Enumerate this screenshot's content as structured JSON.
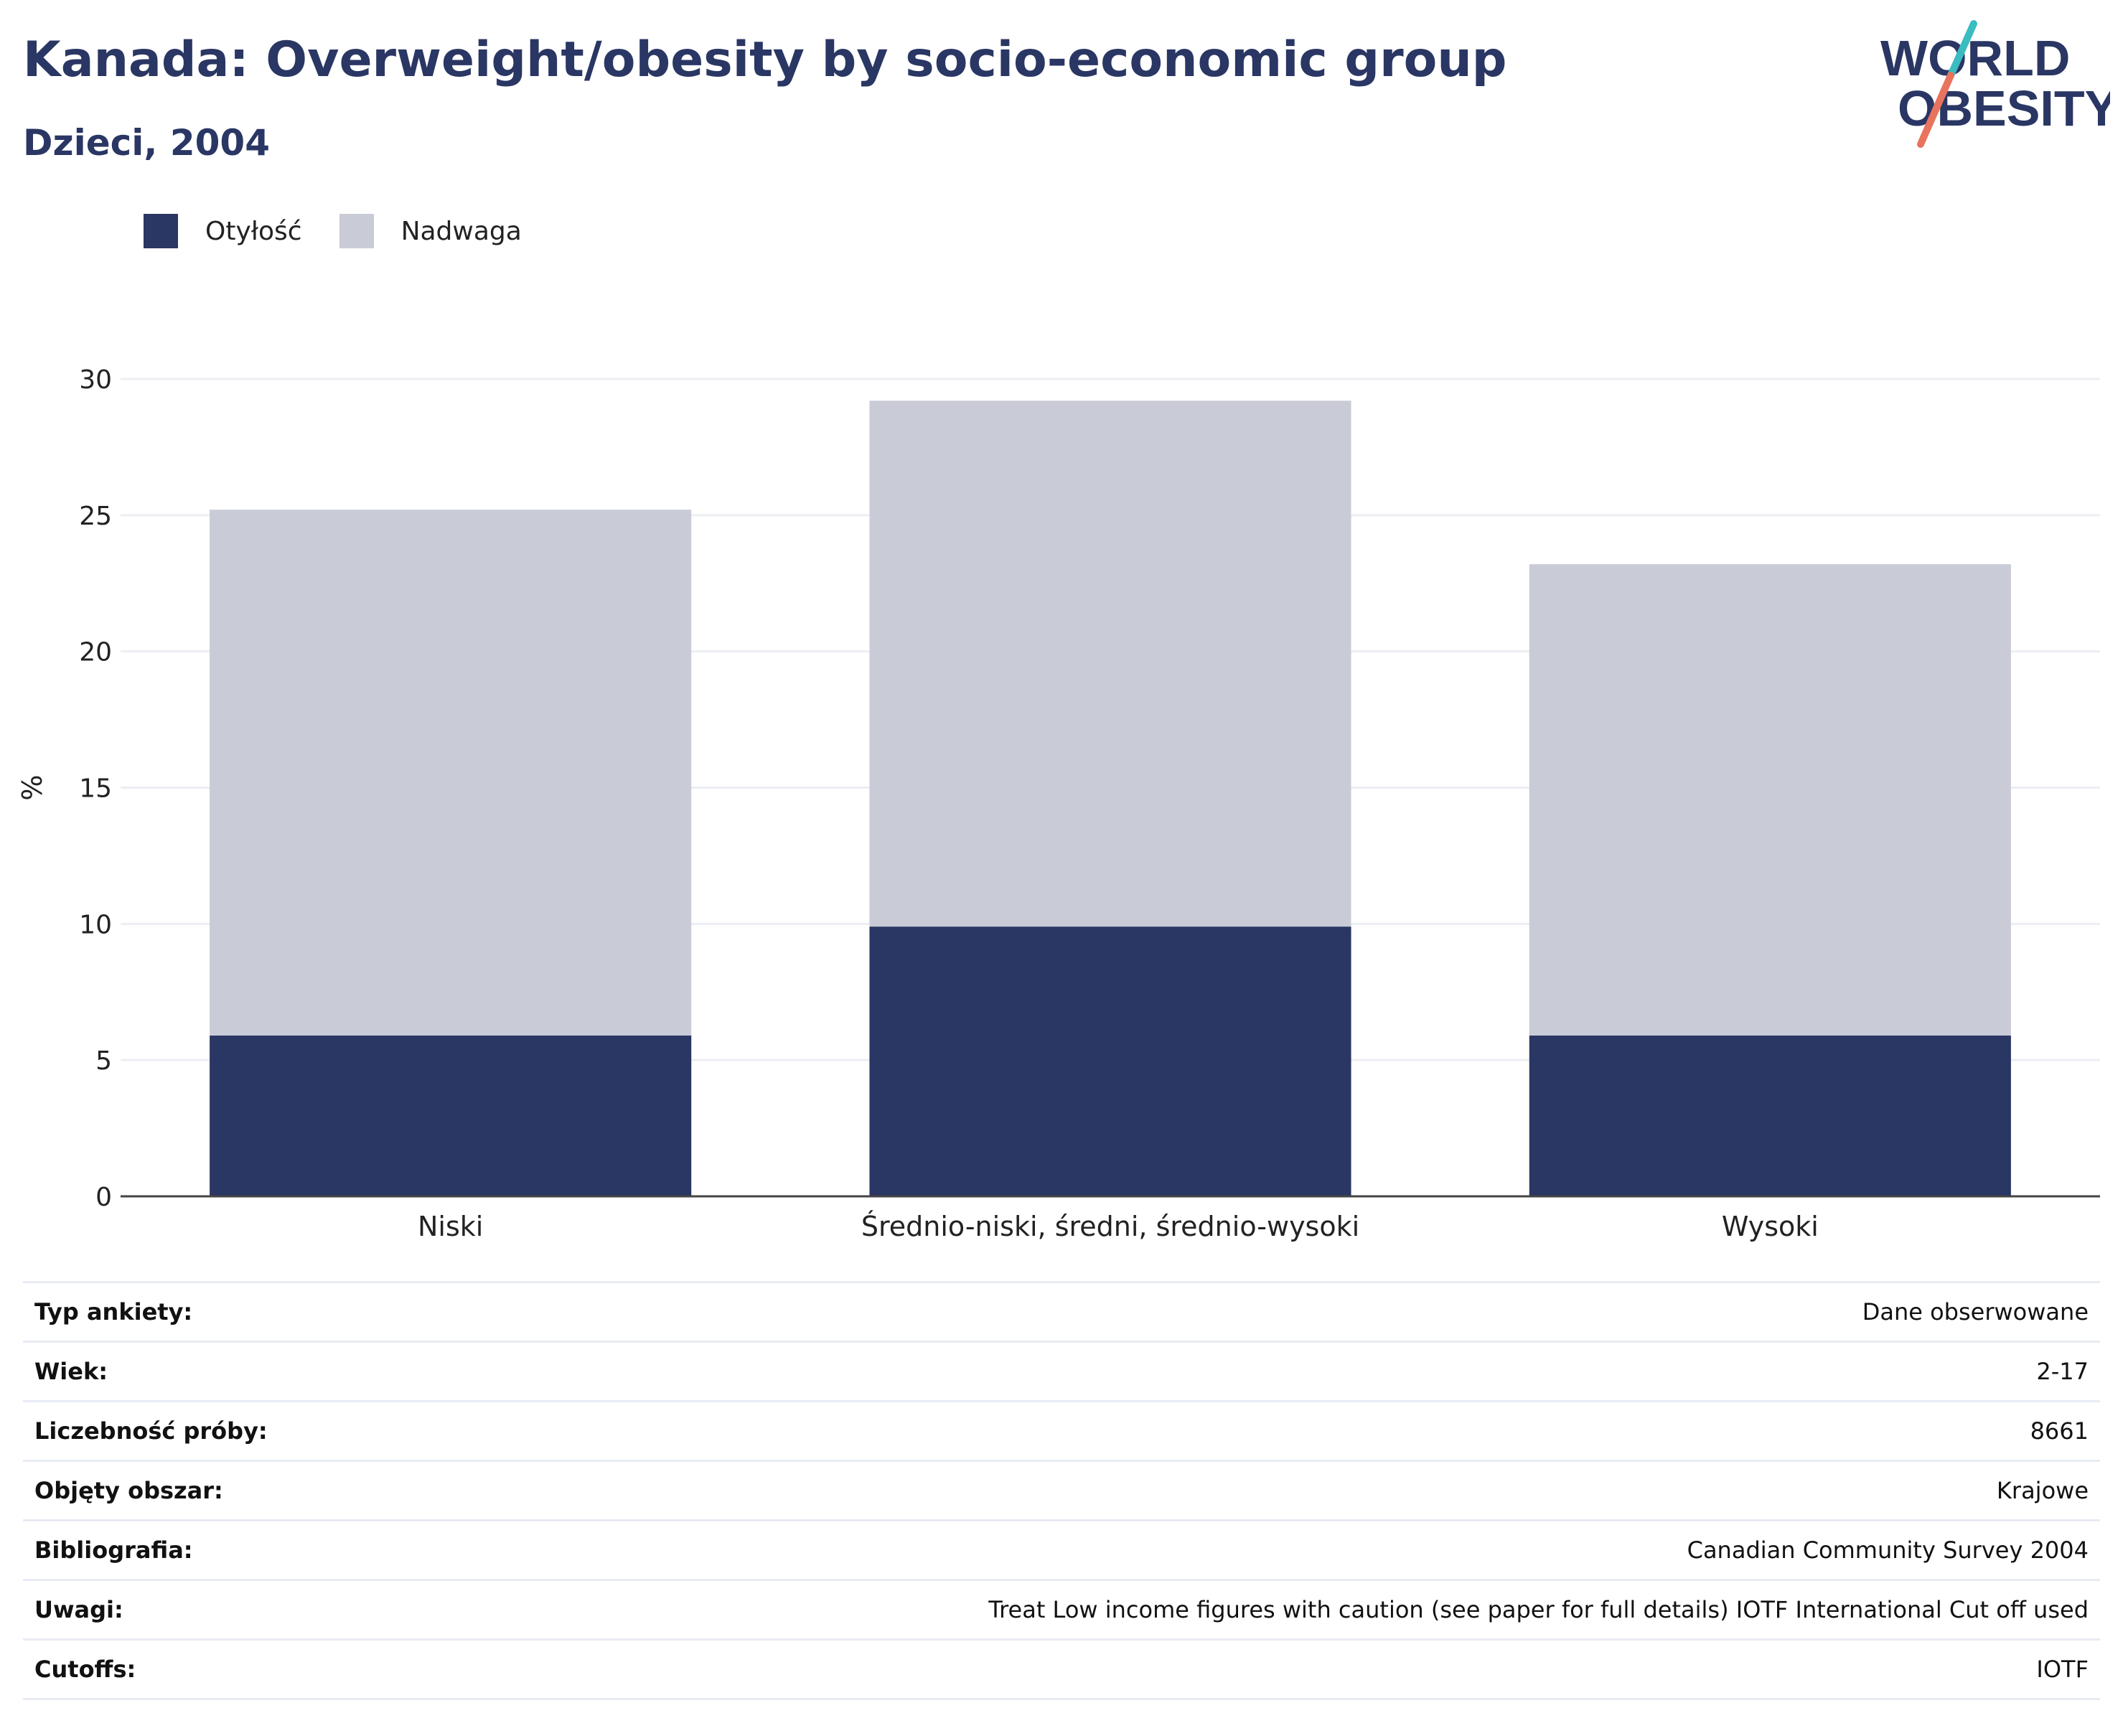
{
  "header": {
    "title": "Kanada: Overweight/obesity by socio-economic group",
    "subtitle": "Dzieci, 2004"
  },
  "logo": {
    "line1": "WORLD",
    "line2": "OBESITY",
    "colors": {
      "text": "#2a3663",
      "slash_teal": "#3bbcc1",
      "slash_coral": "#e8735e"
    }
  },
  "colors": {
    "obesity": "#2a3663",
    "overweight": "#c9cbd7",
    "grid": "#eceef3",
    "axis": "#444444"
  },
  "legend": [
    {
      "label": "Otyłość",
      "color": "#2a3663"
    },
    {
      "label": "Nadwaga",
      "color": "#c9cbd7"
    }
  ],
  "chart_data": {
    "type": "bar",
    "stacked": true,
    "categories": [
      "Niski",
      "Średnio-niski, średni, średnio-wysoki",
      "Wysoki"
    ],
    "series": [
      {
        "name": "Otyłość",
        "values": [
          5.9,
          9.9,
          5.9
        ]
      },
      {
        "name": "Nadwaga",
        "values": [
          19.3,
          19.3,
          17.3
        ]
      }
    ],
    "ylabel": "%",
    "ylim": [
      0,
      30
    ],
    "yticks": [
      0,
      5,
      10,
      15,
      20,
      25,
      30
    ],
    "grid": true,
    "legend_position": "top-left"
  },
  "info": [
    {
      "key": "Typ ankiety:",
      "value": "Dane obserwowane"
    },
    {
      "key": "Wiek:",
      "value": "2-17"
    },
    {
      "key": "Liczebność próby:",
      "value": "8661"
    },
    {
      "key": "Objęty obszar:",
      "value": "Krajowe"
    },
    {
      "key": "Bibliografia:",
      "value": "Canadian Community Survey 2004"
    },
    {
      "key": "Uwagi:",
      "value": "Treat Low income figures with caution (see paper for full details) IOTF International Cut off used"
    },
    {
      "key": "Cutoffs:",
      "value": "IOTF"
    }
  ]
}
